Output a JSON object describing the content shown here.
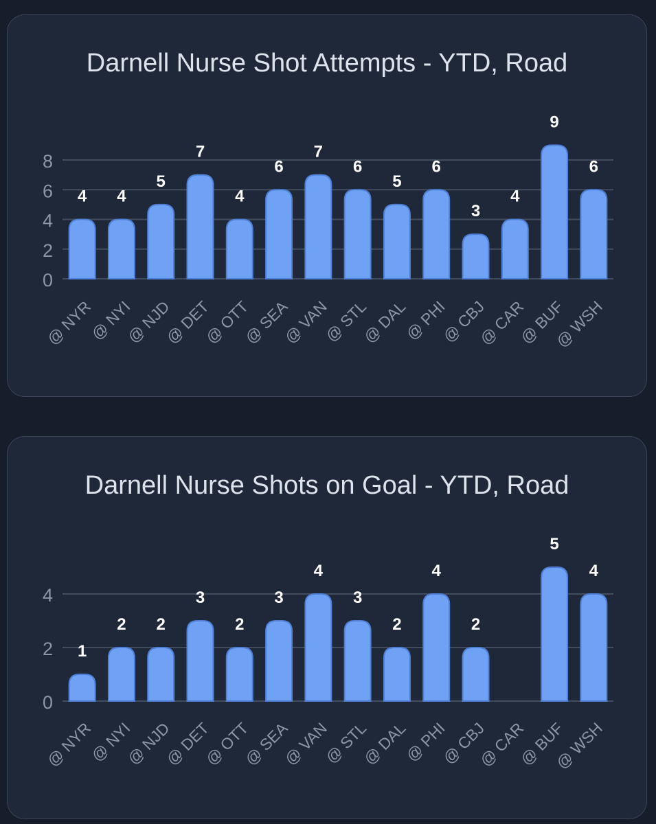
{
  "colors": {
    "background": "#161d2b",
    "card": "#1f2839",
    "bar": "#6fa2f5",
    "bar_outline": "#4f7fd4",
    "grid": "#414c5e",
    "axis_text": "#8c96a6",
    "value_label": "#ffffff",
    "title": "#dde3ec"
  },
  "chart_data": [
    {
      "type": "bar",
      "title": "Darnell Nurse Shot Attempts - YTD, Road",
      "categories": [
        "@ NYR",
        "@ NYI",
        "@ NJD",
        "@ DET",
        "@ OTT",
        "@ SEA",
        "@ VAN",
        "@ STL",
        "@ DAL",
        "@ PHI",
        "@ CBJ",
        "@ CAR",
        "@ BUF",
        "@ WSH"
      ],
      "values": [
        4,
        4,
        5,
        7,
        4,
        6,
        7,
        6,
        5,
        6,
        3,
        4,
        9,
        6
      ],
      "y_ticks": [
        "0",
        "2",
        "4",
        "6",
        "8"
      ],
      "ylim": [
        0,
        9
      ],
      "grid": true,
      "data_labels": true
    },
    {
      "type": "bar",
      "title": "Darnell Nurse Shots on Goal - YTD, Road",
      "categories": [
        "@ NYR",
        "@ NYI",
        "@ NJD",
        "@ DET",
        "@ OTT",
        "@ SEA",
        "@ VAN",
        "@ STL",
        "@ DAL",
        "@ PHI",
        "@ CBJ",
        "@ CAR",
        "@ BUF",
        "@ WSH"
      ],
      "values": [
        1,
        2,
        2,
        3,
        2,
        3,
        4,
        3,
        2,
        4,
        2,
        0,
        5,
        4
      ],
      "y_ticks": [
        "0",
        "2",
        "4"
      ],
      "ylim": [
        0,
        5
      ],
      "grid": true,
      "data_labels": true
    }
  ]
}
